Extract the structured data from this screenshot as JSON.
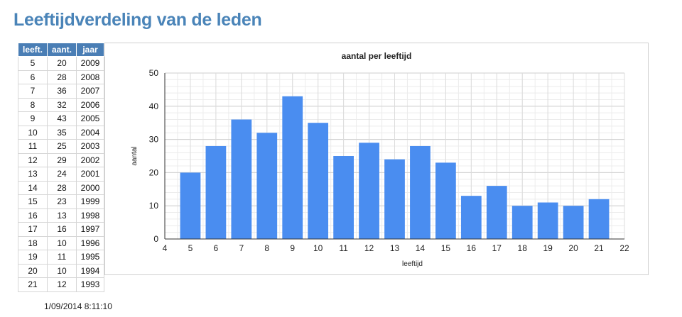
{
  "page": {
    "title": "Leeftijdverdeling van de leden",
    "timestamp": "1/09/2014 8:11:10"
  },
  "table": {
    "headers": [
      "leeft.",
      "aant.",
      "jaar"
    ],
    "rows": [
      [
        "5",
        "20",
        "2009"
      ],
      [
        "6",
        "28",
        "2008"
      ],
      [
        "7",
        "36",
        "2007"
      ],
      [
        "8",
        "32",
        "2006"
      ],
      [
        "9",
        "43",
        "2005"
      ],
      [
        "10",
        "35",
        "2004"
      ],
      [
        "11",
        "25",
        "2003"
      ],
      [
        "12",
        "29",
        "2002"
      ],
      [
        "13",
        "24",
        "2001"
      ],
      [
        "14",
        "28",
        "2000"
      ],
      [
        "15",
        "23",
        "1999"
      ],
      [
        "16",
        "13",
        "1998"
      ],
      [
        "17",
        "16",
        "1997"
      ],
      [
        "18",
        "10",
        "1996"
      ],
      [
        "19",
        "11",
        "1995"
      ],
      [
        "20",
        "10",
        "1994"
      ],
      [
        "21",
        "12",
        "1993"
      ]
    ]
  },
  "chart_data": {
    "type": "bar",
    "title": "aantal per leeftijd",
    "xlabel": "leeftijd",
    "ylabel": "aantal",
    "x": [
      5,
      6,
      7,
      8,
      9,
      10,
      11,
      12,
      13,
      14,
      15,
      16,
      17,
      18,
      19,
      20,
      21
    ],
    "values": [
      20,
      28,
      36,
      32,
      43,
      35,
      25,
      29,
      24,
      28,
      23,
      13,
      16,
      10,
      11,
      10,
      12
    ],
    "xlim": [
      4,
      22
    ],
    "ylim": [
      0,
      50
    ],
    "x_ticks": [
      4,
      5,
      6,
      7,
      8,
      9,
      10,
      11,
      12,
      13,
      14,
      15,
      16,
      17,
      18,
      19,
      20,
      21,
      22
    ],
    "y_ticks": [
      0,
      10,
      20,
      30,
      40,
      50
    ],
    "bar_color": "#4a8df0",
    "grid": true,
    "legend": "none"
  }
}
